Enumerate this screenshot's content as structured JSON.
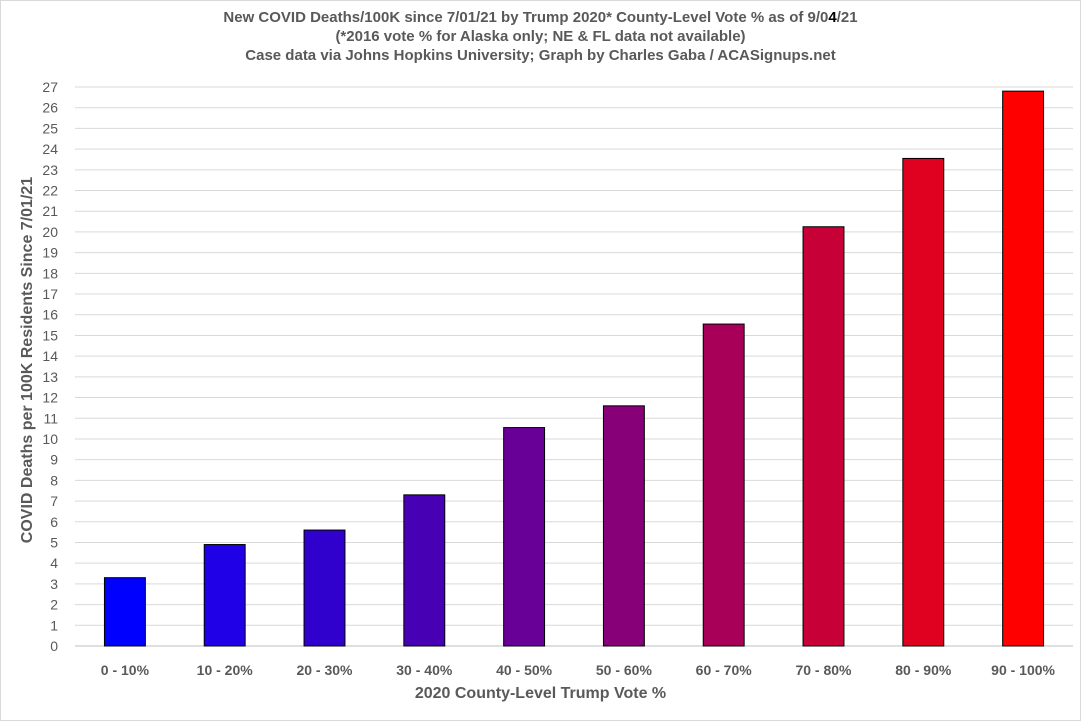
{
  "chart_data": {
    "type": "bar",
    "title_line1_pre": "New COVID Deaths/100K since 7/01/21 by Trump 2020* County-Level Vote % as of 9/0",
    "title_line1_hl": "4",
    "title_line1_post": "/21",
    "title_line2": "(*2016 vote % for Alaska only; NE & FL data not available)",
    "title_line3": "Case data via Johns Hopkins University; Graph by Charles Gaba / ACASignups.net",
    "xlabel": "2020 County-Level Trump Vote %",
    "ylabel": "COVID Deaths per 100K Residents Since 7/01/21",
    "ylim": [
      0,
      27
    ],
    "yticks": [
      0,
      1,
      2,
      3,
      4,
      5,
      6,
      7,
      8,
      9,
      10,
      11,
      12,
      13,
      14,
      15,
      16,
      17,
      18,
      19,
      20,
      21,
      22,
      23,
      24,
      25,
      26,
      27
    ],
    "grid": true,
    "categories": [
      "0 - 10%",
      "10 - 20%",
      "20 - 30%",
      "30 - 40%",
      "40 - 50%",
      "50 - 60%",
      "60 - 70%",
      "70 - 80%",
      "80 - 90%",
      "90 - 100%"
    ],
    "values": [
      3.3,
      4.9,
      5.6,
      7.3,
      10.55,
      11.6,
      15.55,
      20.25,
      23.55,
      26.8
    ],
    "colors": [
      "#0000ff",
      "#2000e6",
      "#3000cc",
      "#4800b4",
      "#680098",
      "#880078",
      "#a80058",
      "#c80038",
      "#e0001f",
      "#ff0000"
    ]
  }
}
